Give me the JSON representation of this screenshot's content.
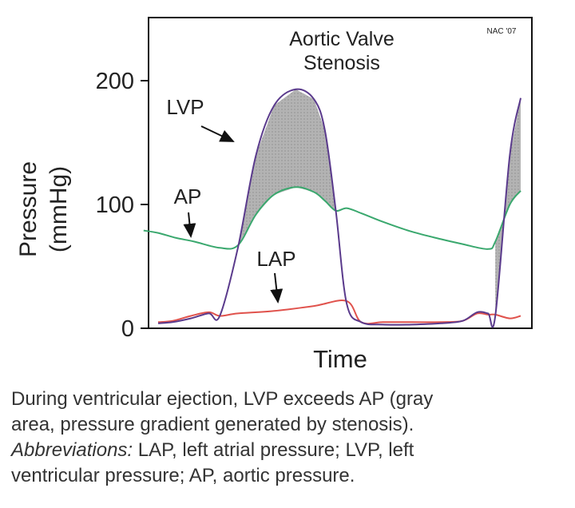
{
  "chart_data": {
    "type": "line",
    "title": "Aortic Valve Stenosis",
    "title_lines": [
      "Aortic Valve",
      "Stenosis"
    ],
    "watermark": "NAC '07",
    "xlabel": "Time",
    "ylabel_lines": [
      "Pressure",
      "(mmHg)"
    ],
    "yticks": [
      0,
      100,
      200
    ],
    "ylim": [
      0,
      250
    ],
    "xlim": [
      0,
      100
    ],
    "grid": false,
    "series": [
      {
        "name": "LVP",
        "color": "#5a3a8c",
        "x": [
          0,
          4,
          9,
          14,
          17,
          22,
          27,
          32,
          38,
          43,
          46,
          49,
          52,
          56,
          62,
          70,
          78,
          84,
          88,
          91,
          93,
          97,
          100
        ],
        "y": [
          4,
          5,
          8,
          12,
          10,
          65,
          140,
          180,
          193,
          185,
          160,
          95,
          20,
          5,
          3,
          3,
          4,
          6,
          13,
          12,
          10,
          140,
          186
        ]
      },
      {
        "name": "AP",
        "color": "#3aa86e",
        "x": [
          -4,
          0,
          5,
          10,
          17,
          22,
          27,
          32,
          38,
          43,
          46,
          49,
          52,
          56,
          62,
          70,
          78,
          84,
          91,
          93,
          97,
          100
        ],
        "y": [
          79,
          77,
          73,
          70,
          65,
          67,
          92,
          108,
          114,
          110,
          103,
          95,
          97,
          93,
          86,
          78,
          72,
          68,
          64,
          70,
          100,
          111
        ]
      },
      {
        "name": "LAP",
        "color": "#e0524c",
        "x": [
          0,
          4,
          9,
          14,
          17,
          22,
          32,
          43,
          52,
          56,
          62,
          70,
          78,
          84,
          88,
          91,
          93,
          97,
          100
        ],
        "y": [
          5,
          6,
          10,
          13,
          10,
          12,
          14,
          18,
          22,
          5,
          5,
          5,
          5,
          6,
          12,
          11,
          11,
          8,
          10
        ]
      }
    ],
    "shaded_area": {
      "description_label": "pressure gradient generated by stenosis",
      "color": "#a9a9a9",
      "between": [
        "LVP",
        "AP"
      ],
      "intervals": [
        [
          22,
          49
        ],
        [
          93,
          100
        ]
      ]
    },
    "annotations": [
      {
        "text": "LVP",
        "target_series": "LVP"
      },
      {
        "text": "AP",
        "target_series": "AP"
      },
      {
        "text": "LAP",
        "target_series": "LAP"
      }
    ]
  },
  "caption": {
    "line1": "During ventricular ejection, LVP exceeds AP (gray",
    "line2": "area, pressure gradient generated by stenosis).",
    "abbrev_label": "Abbreviations:",
    "line3_rest": " LAP, left atrial pressure; LVP, left",
    "line4": "ventricular pressure; AP, aortic pressure."
  }
}
